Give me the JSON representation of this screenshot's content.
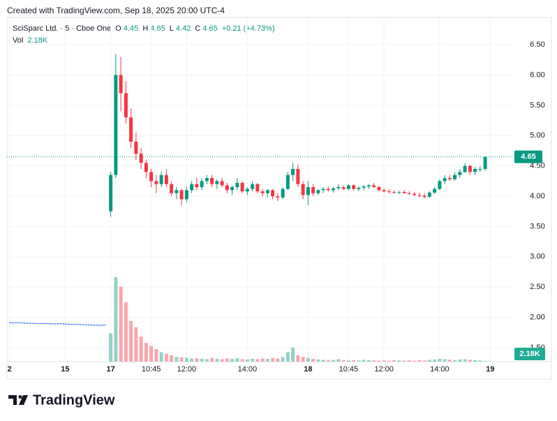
{
  "chart_data": {
    "type": "candlestick",
    "credit": "Created with TradingView.com, Sep 18, 2025 20:00 UTC-4",
    "title": "SciSparc Ltd. · 5 · Cboe One",
    "ohlc_labels": {
      "open": "O",
      "high": "H",
      "low": "L",
      "close": "C"
    },
    "last": {
      "open": 4.45,
      "high": 4.65,
      "low": 4.42,
      "close": 4.65,
      "change": {
        "value": 0.21,
        "label": "+0.21"
      },
      "change_pct": {
        "value": 4.73,
        "label": "(+4.73%)"
      }
    },
    "volume_label": "Vol",
    "last_volume": {
      "value": 2180,
      "label": "2.18K"
    },
    "brand": "TradingView",
    "up_color": "#089981",
    "down_color": "#f23645",
    "volume_up_color": "#92d2c7",
    "volume_down_color": "#f9a6ad",
    "volume_ma_color": "#2962ff",
    "categories": [
      "2",
      null,
      null,
      null,
      null,
      null,
      null,
      null,
      null,
      null,
      null,
      "15",
      null,
      null,
      null,
      null,
      null,
      null,
      null,
      null,
      "17",
      null,
      null,
      null,
      null,
      null,
      null,
      null,
      "10:45",
      null,
      null,
      null,
      null,
      null,
      null,
      "12:00",
      null,
      null,
      null,
      null,
      null,
      null,
      null,
      null,
      null,
      null,
      null,
      "14:00",
      null,
      null,
      null,
      null,
      null,
      null,
      null,
      null,
      null,
      null,
      null,
      "18",
      null,
      null,
      null,
      null,
      null,
      null,
      null,
      "10:45",
      null,
      null,
      null,
      null,
      null,
      null,
      "12:00",
      null,
      null,
      null,
      null,
      null,
      null,
      null,
      null,
      null,
      null,
      "14:00",
      null,
      null,
      null,
      null,
      null,
      null,
      null,
      null,
      null,
      "19"
    ],
    "open": [
      null,
      null,
      null,
      null,
      null,
      null,
      null,
      null,
      null,
      null,
      null,
      null,
      null,
      null,
      null,
      null,
      null,
      null,
      null,
      null,
      3.75,
      4.35,
      6.0,
      5.7,
      5.3,
      4.9,
      4.7,
      4.55,
      4.4,
      4.25,
      4.2,
      4.35,
      4.2,
      4.05,
      4.1,
      3.95,
      4.1,
      4.2,
      4.15,
      4.25,
      4.3,
      4.2,
      4.25,
      4.18,
      4.1,
      4.15,
      4.22,
      4.08,
      4.12,
      4.2,
      4.08,
      4.05,
      4.1,
      4.0,
      3.98,
      4.12,
      4.35,
      4.45,
      4.2,
      4.02,
      4.15,
      4.05,
      4.1,
      4.12,
      4.1,
      4.13,
      4.15,
      4.12,
      4.18,
      4.12,
      4.14,
      4.16,
      4.18,
      4.15,
      4.1,
      4.08,
      4.07,
      4.06,
      4.07,
      4.05,
      4.04,
      4.02,
      4.01,
      3.99,
      4.06,
      4.12,
      4.25,
      4.3,
      4.28,
      4.35,
      4.4,
      4.5,
      4.4,
      4.45,
      4.45,
      null
    ],
    "high": [
      null,
      null,
      null,
      null,
      null,
      null,
      null,
      null,
      null,
      null,
      null,
      null,
      null,
      null,
      null,
      null,
      null,
      null,
      null,
      null,
      4.4,
      6.35,
      6.3,
      5.9,
      5.45,
      5.05,
      4.8,
      4.6,
      4.45,
      4.35,
      4.4,
      4.45,
      4.25,
      4.15,
      4.12,
      4.15,
      4.25,
      4.3,
      4.3,
      4.35,
      4.35,
      4.28,
      4.3,
      4.22,
      4.18,
      4.3,
      4.25,
      4.15,
      4.25,
      4.22,
      4.12,
      4.12,
      4.12,
      4.05,
      4.15,
      4.4,
      4.55,
      4.52,
      4.25,
      4.25,
      4.2,
      4.12,
      4.15,
      4.16,
      4.15,
      4.2,
      4.18,
      4.2,
      4.2,
      4.16,
      4.18,
      4.2,
      4.22,
      4.17,
      4.13,
      4.12,
      4.1,
      4.09,
      4.1,
      4.08,
      4.07,
      4.06,
      4.05,
      4.08,
      4.15,
      4.28,
      4.35,
      4.35,
      4.4,
      4.45,
      4.55,
      4.52,
      4.48,
      4.5,
      4.65,
      null
    ],
    "low": [
      null,
      null,
      null,
      null,
      null,
      null,
      null,
      null,
      null,
      null,
      null,
      null,
      null,
      null,
      null,
      null,
      null,
      null,
      null,
      null,
      3.66,
      4.3,
      5.4,
      5.2,
      4.8,
      4.6,
      4.45,
      4.3,
      4.15,
      4.05,
      4.15,
      4.15,
      4.0,
      3.95,
      3.85,
      3.9,
      4.05,
      4.1,
      4.1,
      4.2,
      4.15,
      4.12,
      4.15,
      4.05,
      4.02,
      4.1,
      4.05,
      4.02,
      4.08,
      4.05,
      4.0,
      3.98,
      3.95,
      3.92,
      3.95,
      4.1,
      4.25,
      4.15,
      3.95,
      3.85,
      4.0,
      4.02,
      4.05,
      4.08,
      4.06,
      4.1,
      4.1,
      4.1,
      4.1,
      4.08,
      4.1,
      4.12,
      4.14,
      4.08,
      4.06,
      4.05,
      4.04,
      4.03,
      4.04,
      4.02,
      4.0,
      3.98,
      3.96,
      3.97,
      4.04,
      4.1,
      4.2,
      4.25,
      4.26,
      4.3,
      4.38,
      4.35,
      4.35,
      4.4,
      4.42,
      null
    ],
    "close": [
      null,
      null,
      null,
      null,
      null,
      null,
      null,
      null,
      null,
      null,
      null,
      null,
      null,
      null,
      null,
      null,
      null,
      null,
      null,
      null,
      4.35,
      6.0,
      5.7,
      5.3,
      4.9,
      4.7,
      4.55,
      4.4,
      4.25,
      4.2,
      4.35,
      4.2,
      4.05,
      4.1,
      3.95,
      4.1,
      4.2,
      4.15,
      4.25,
      4.3,
      4.2,
      4.25,
      4.18,
      4.1,
      4.15,
      4.22,
      4.08,
      4.12,
      4.2,
      4.08,
      4.05,
      4.1,
      4.0,
      3.98,
      4.12,
      4.35,
      4.45,
      4.2,
      4.02,
      4.15,
      4.05,
      4.1,
      4.12,
      4.1,
      4.13,
      4.15,
      4.12,
      4.18,
      4.12,
      4.14,
      4.16,
      4.18,
      4.15,
      4.1,
      4.08,
      4.07,
      4.06,
      4.07,
      4.05,
      4.04,
      4.02,
      4.01,
      3.99,
      4.06,
      4.12,
      4.25,
      4.3,
      4.28,
      4.35,
      4.4,
      4.5,
      4.4,
      4.45,
      4.45,
      4.65,
      null
    ],
    "volume": [
      null,
      null,
      null,
      null,
      null,
      null,
      null,
      null,
      null,
      null,
      null,
      null,
      null,
      null,
      null,
      null,
      null,
      null,
      null,
      null,
      90000,
      270000,
      240000,
      190000,
      130000,
      110000,
      80000,
      60000,
      50000,
      40000,
      30000,
      25000,
      20000,
      15000,
      14000,
      12000,
      10000,
      11000,
      9000,
      8000,
      12000,
      9000,
      8000,
      10000,
      9000,
      11000,
      8000,
      7000,
      9000,
      8000,
      10000,
      9000,
      12000,
      10000,
      14000,
      30000,
      45000,
      20000,
      15000,
      12000,
      9000,
      7000,
      6000,
      5000,
      6000,
      8000,
      5000,
      4000,
      5000,
      4000,
      6000,
      5000,
      4000,
      3000,
      4000,
      3000,
      5000,
      4000,
      3000,
      4000,
      3000,
      5000,
      4000,
      6000,
      7000,
      9000,
      8000,
      6000,
      5000,
      7000,
      8000,
      6000,
      5000,
      4000,
      2180,
      null
    ],
    "volume_ma": [
      125000,
      124000,
      124500,
      123000,
      122500,
      122000,
      121500,
      122000,
      121000,
      120500,
      121500,
      120000,
      119500,
      119000,
      118500,
      118000,
      117000,
      116500,
      116000,
      118000,
      null,
      null,
      null,
      null,
      null,
      null,
      null,
      null,
      null,
      null,
      null,
      null,
      null,
      null,
      null,
      null,
      null,
      null,
      null,
      null,
      null,
      null,
      null,
      null,
      null,
      null,
      null,
      null,
      null,
      null,
      null,
      null,
      null,
      null,
      null,
      null,
      null,
      null,
      null,
      null,
      null,
      null,
      null,
      null,
      null,
      null,
      null,
      null,
      null,
      null,
      null,
      null,
      null,
      null,
      null,
      null,
      null,
      null,
      null,
      null,
      null,
      null,
      null,
      null,
      null,
      null,
      null,
      null,
      null,
      null,
      null,
      null,
      null,
      null,
      null,
      null
    ],
    "ylim": [
      1.27,
      6.95
    ],
    "yticks": [
      {
        "value": 6.5,
        "label": "6.50"
      },
      {
        "value": 6.0,
        "label": "6.00"
      },
      {
        "value": 5.5,
        "label": "5.50"
      },
      {
        "value": 5.0,
        "label": "5.00"
      },
      {
        "value": 4.5,
        "label": "4.50"
      },
      {
        "value": 4.0,
        "label": "4.00"
      },
      {
        "value": 3.5,
        "label": "3.50"
      },
      {
        "value": 3.0,
        "label": "3.00"
      },
      {
        "value": 2.5,
        "label": "2.50"
      },
      {
        "value": 2.0,
        "label": "2.00"
      },
      {
        "value": 1.5,
        "label": "1.50"
      }
    ],
    "vlim": [
      0,
      1100000
    ],
    "grid": true
  }
}
